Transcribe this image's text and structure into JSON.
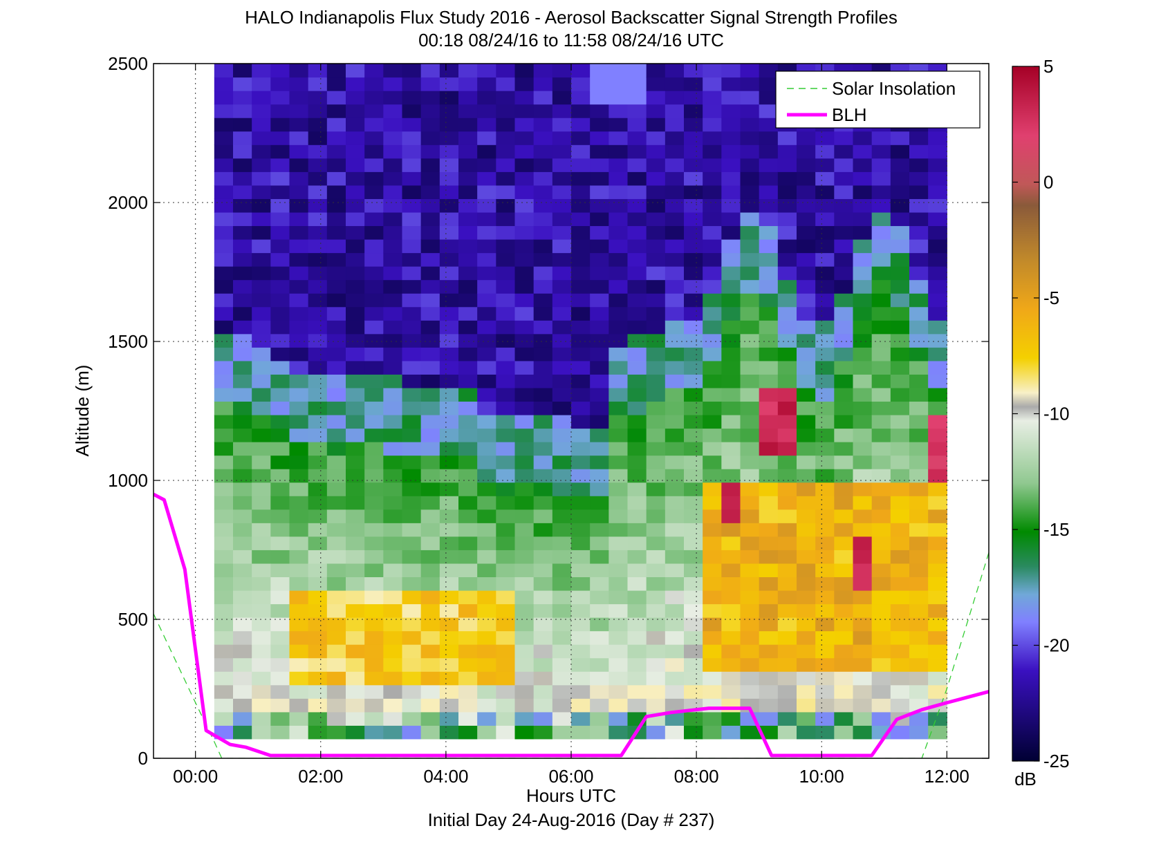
{
  "chart_data": {
    "type": "heatmap",
    "title": "HALO Indianapolis Flux Study 2016 - Aerosol Backscatter Signal Strength Profiles",
    "subtitle": "00:18 08/24/16 to 11:58 08/24/16  UTC",
    "xlabel": "Hours UTC",
    "xlabel2": "Initial Day 24-Aug-2016 (Day # 237)",
    "ylabel": "Altitude (m)",
    "xlim": [
      -0.67,
      12.67
    ],
    "ylim": [
      0,
      2500
    ],
    "x_ticks": [
      0,
      2,
      4,
      6,
      8,
      10,
      12
    ],
    "x_tick_labels": [
      "00:00",
      "02:00",
      "04:00",
      "06:00",
      "08:00",
      "10:00",
      "12:00"
    ],
    "y_ticks": [
      0,
      500,
      1000,
      1500,
      2000,
      2500
    ],
    "y_tick_labels": [
      "0",
      "500",
      "1000",
      "1500",
      "2000",
      "2500"
    ],
    "grid": true,
    "grid_style": "dotted",
    "legend_position": "top-right",
    "colorbar": {
      "ticks": [
        5,
        0,
        -5,
        -10,
        -15,
        -20,
        -25
      ],
      "tick_labels": [
        "5",
        "0",
        "-5",
        "-10",
        "-15",
        "-20",
        "-25"
      ],
      "unit_label": "dB",
      "range": [
        -25,
        5
      ]
    },
    "heatmap": {
      "x_start": 0.3,
      "x_end": 12.0,
      "x_bins": 39,
      "y_start": 70,
      "y_end": 2500,
      "y_bins": 50,
      "value_unit": "dB"
    },
    "series": [
      {
        "name": "Solar Insolation",
        "style": "dashed",
        "color": "#33cc33",
        "x": [
          -0.67,
          0.0,
          0.3,
          0.42,
          11.6,
          12.0,
          12.67
        ],
        "y": [
          520,
          200,
          60,
          0,
          0,
          250,
          740
        ]
      },
      {
        "name": "BLH",
        "style": "solid",
        "color": "#ff00ff",
        "x": [
          -0.67,
          -0.5,
          -0.17,
          0.17,
          0.55,
          0.8,
          1.2,
          6.8,
          7.2,
          7.6,
          8.2,
          8.5,
          8.85,
          9.2,
          10.8,
          11.2,
          11.6,
          12.0,
          12.67
        ],
        "y": [
          950,
          930,
          680,
          100,
          50,
          40,
          10,
          10,
          150,
          165,
          180,
          180,
          180,
          10,
          10,
          140,
          175,
          200,
          240
        ]
      }
    ]
  }
}
